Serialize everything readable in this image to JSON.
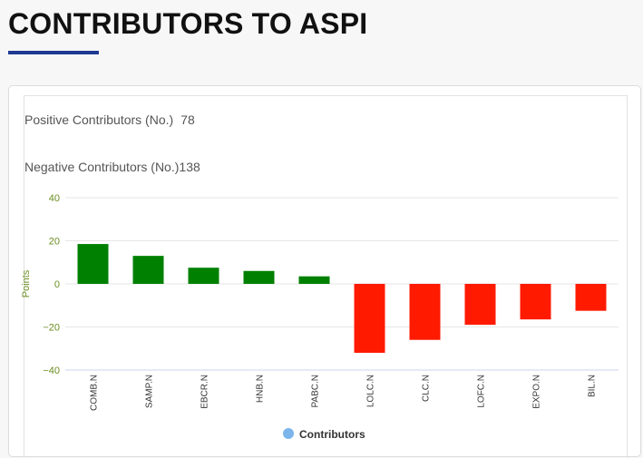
{
  "header": {
    "title": "CONTRIBUTORS TO ASPI"
  },
  "stats": {
    "positive_label": "Positive Contributors (No.)",
    "positive_value": "78",
    "negative_label": "Negative Contributors (No.)",
    "negative_value": "138"
  },
  "colors": {
    "accent": "#1f3a93",
    "positive_bar": "#008000",
    "negative_bar": "#ff1a00",
    "legend_marker": "#7cb5ec",
    "axis_text": "#6b8e23"
  },
  "chart_data": {
    "type": "bar",
    "categories": [
      "COMB.N",
      "SAMP.N",
      "EBCR.N",
      "HNB.N",
      "PABC.N",
      "LOLC.N",
      "CLC.N",
      "LOFC.N",
      "EXPO.N",
      "BIL.N"
    ],
    "series": [
      {
        "name": "Contributors",
        "values": [
          18.5,
          13.0,
          7.5,
          6.0,
          3.5,
          -32.0,
          -26.0,
          -19.0,
          -16.5,
          -12.5
        ]
      }
    ],
    "ylabel": "Points",
    "ylim": [
      -40,
      40
    ],
    "yticks": [
      "40",
      "20",
      "0",
      "−20",
      "−40"
    ],
    "grid": true,
    "legend": "bottom-center"
  }
}
